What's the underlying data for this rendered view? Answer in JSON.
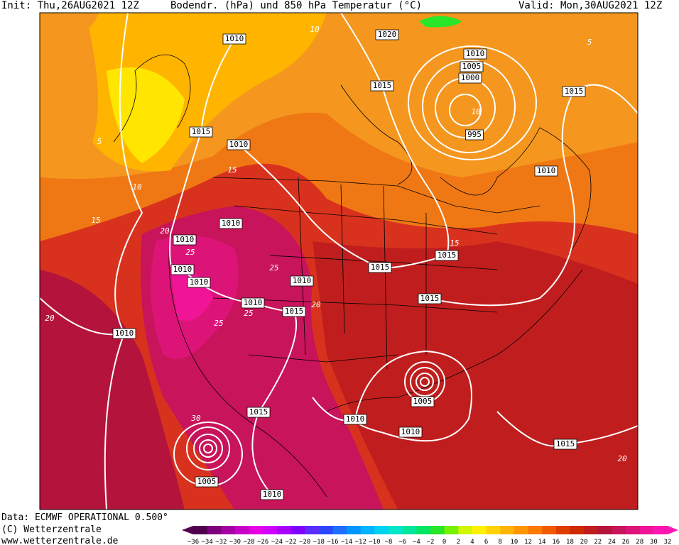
{
  "header": {
    "init": "Init: Thu,26AUG2021 12Z",
    "title": "Bodendr. (hPa) und 850 hPa Temperatur (°C)",
    "valid": "Valid: Mon,30AUG2021 12Z"
  },
  "isobars": [
    "1010",
    "1020",
    "1010",
    "1005",
    "1000",
    "1015",
    "1015",
    "995",
    "1015",
    "1010",
    "1010",
    "1010",
    "1010",
    "1015",
    "1010",
    "1015",
    "1010",
    "1010",
    "1010",
    "1015",
    "1015",
    "1010",
    "1005",
    "1015",
    "1010",
    "1010",
    "1015",
    "1005",
    "1010"
  ],
  "isotherms": [
    "5",
    "10",
    "10",
    "15",
    "15",
    "20",
    "20",
    "25",
    "25",
    "25",
    "15",
    "10",
    "5",
    "25",
    "20",
    "20",
    "30"
  ],
  "footer": {
    "source": "Data: ECMWF OPERATIONAL 0.500°",
    "copyright": "(C) Wetterzentrale",
    "url": "www.wetterzentrale.de"
  },
  "colorbar": {
    "labels": [
      "−36",
      "−34",
      "−32",
      "−30",
      "−28",
      "−26",
      "−24",
      "−22",
      "−20",
      "−18",
      "−16",
      "−14",
      "−12",
      "−10",
      "−8",
      "−6",
      "−4",
      "−2",
      "0",
      "2",
      "4",
      "6",
      "8",
      "10",
      "12",
      "14",
      "16",
      "18",
      "20",
      "22",
      "24",
      "26",
      "28",
      "30",
      "32"
    ],
    "colors": [
      "#50004f",
      "#7d007d",
      "#a400a4",
      "#c800c8",
      "#e600e6",
      "#d000ff",
      "#a800ff",
      "#8000ff",
      "#5a2cff",
      "#2a46ff",
      "#1e6eff",
      "#0096ff",
      "#00b4ff",
      "#00d2f0",
      "#00e6c8",
      "#00e69b",
      "#00e664",
      "#28e628",
      "#78f000",
      "#d2f500",
      "#fff000",
      "#ffd200",
      "#ffb400",
      "#ff9600",
      "#ff7800",
      "#f05a00",
      "#e03c00",
      "#d02800",
      "#c01e1e",
      "#b4143c",
      "#c8145a",
      "#dc1478",
      "#f01496",
      "#ff14b4"
    ]
  }
}
